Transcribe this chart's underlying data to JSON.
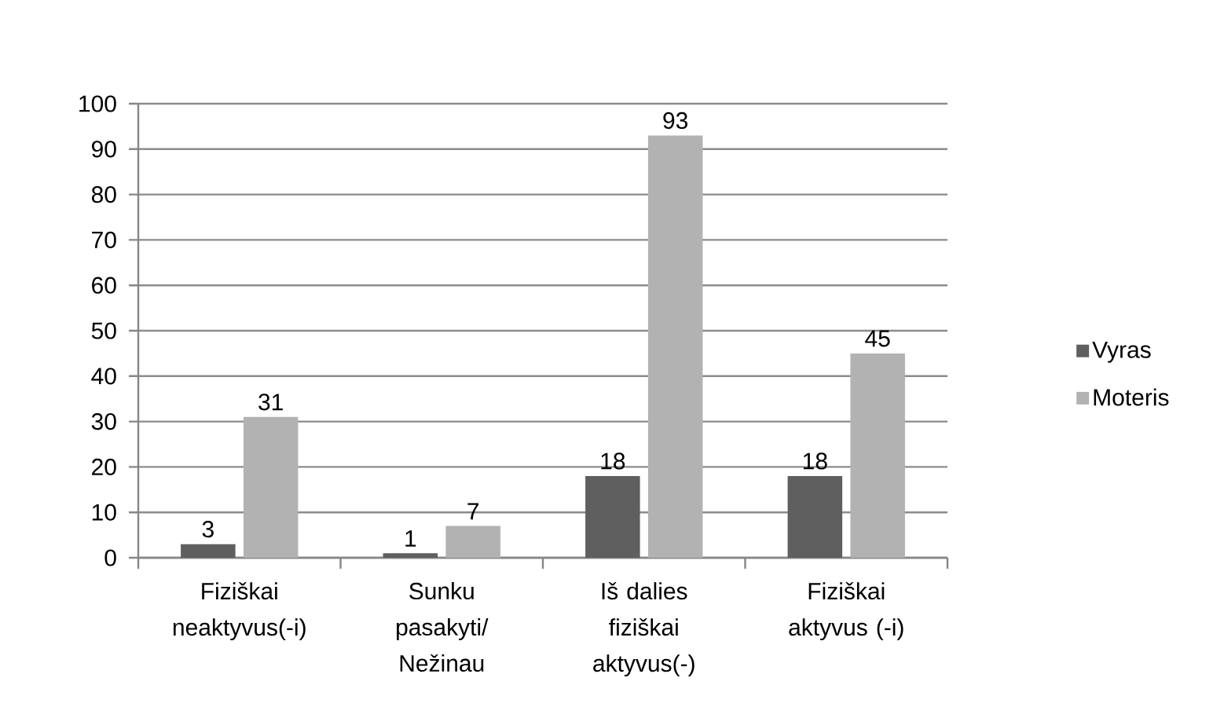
{
  "chart_data": {
    "type": "bar",
    "categories": [
      "Fiziškai neaktyvus(-i)",
      "Sunku pasakyti/ Nežinau",
      "Iš dalies fiziškai aktyvus(-)",
      "Fiziškai aktyvus (-i)"
    ],
    "series": [
      {
        "name": "Vyras",
        "color": "#5f5f5f",
        "values": [
          3,
          1,
          18,
          18
        ]
      },
      {
        "name": "Moteris",
        "color": "#b2b2b2",
        "values": [
          31,
          7,
          93,
          45
        ]
      }
    ],
    "ylim": [
      0,
      100
    ],
    "yticks": [
      0,
      10,
      20,
      30,
      40,
      50,
      60,
      70,
      80,
      90,
      100
    ],
    "grid": "y",
    "legend": "right",
    "data_labels": true
  }
}
